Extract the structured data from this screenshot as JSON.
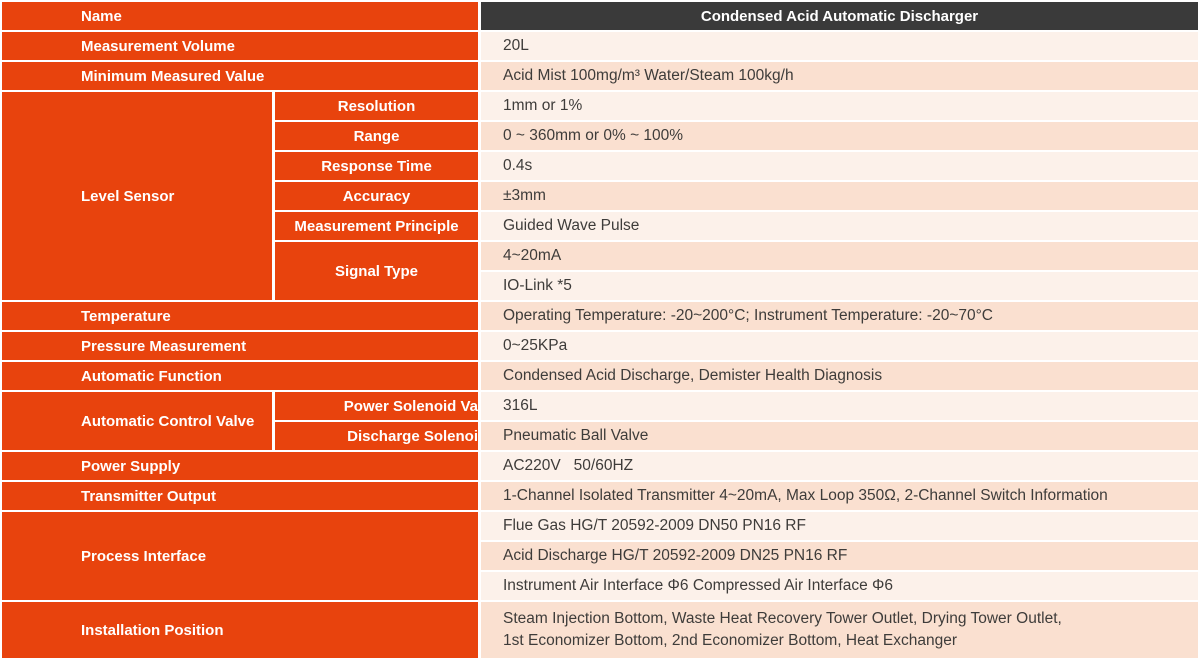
{
  "table": {
    "header": {
      "name_label": "Name",
      "product_title": "Condensed Acid Automatic Discharger"
    },
    "rows": {
      "measurement_volume": {
        "label": "Measurement Volume",
        "value": "20L"
      },
      "minimum_measured_value": {
        "label": "Minimum Measured Value",
        "value": "Acid Mist 100mg/m³ Water/Steam 100kg/h"
      },
      "level_sensor": {
        "label": "Level Sensor",
        "resolution": {
          "label": "Resolution",
          "value": "1mm or 1%"
        },
        "range": {
          "label": "Range",
          "value": "0 ~ 360mm or 0% ~ 100%"
        },
        "response_time": {
          "label": "Response Time",
          "value": "0.4s"
        },
        "accuracy": {
          "label": "Accuracy",
          "value": "±3mm"
        },
        "measurement_principle": {
          "label": "Measurement Principle",
          "value": "Guided Wave Pulse"
        },
        "signal_type": {
          "label": "Signal Type",
          "value_1": "4~20mA",
          "value_2": "IO-Link *5"
        }
      },
      "temperature": {
        "label": "Temperature",
        "value": "Operating Temperature: -20~200°C; Instrument Temperature: -20~70°C"
      },
      "pressure_measurement": {
        "label": "Pressure Measurement",
        "value": "0~25KPa"
      },
      "automatic_function": {
        "label": "Automatic Function",
        "value": "Condensed Acid Discharge, Demister Health Diagnosis"
      },
      "automatic_control_valve": {
        "label": "Automatic Control Valve",
        "power_solenoid": {
          "label": "Power Solenoid Va",
          "value": "316L"
        },
        "discharge_solenoid": {
          "label": "Discharge Solenoi",
          "value": "Pneumatic Ball Valve"
        }
      },
      "power_supply": {
        "label": "Power Supply",
        "value": "AC220V   50/60HZ"
      },
      "transmitter_output": {
        "label": "Transmitter Output",
        "value": "1-Channel Isolated Transmitter 4~20mA, Max Loop 350Ω, 2-Channel Switch Information"
      },
      "process_interface": {
        "label": "Process Interface",
        "value_1": "Flue Gas HG/T 20592-2009 DN50 PN16 RF",
        "value_2": "Acid Discharge HG/T 20592-2009 DN25 PN16 RF",
        "value_3": "Instrument Air Interface Φ6 Compressed Air Interface Φ6"
      },
      "installation_position": {
        "label": "Installation Position",
        "value_line_1": "Steam Injection Bottom, Waste Heat Recovery Tower Outlet, Drying Tower Outlet,",
        "value_line_2": "1st Economizer Bottom, 2nd Economizer Bottom, Heat Exchanger"
      }
    },
    "colors": {
      "accent_orange": "#E8430D",
      "header_dark": "#3A3A3A",
      "row_light": "#FCF1EA",
      "row_peach": "#FAE0D0",
      "label_text": "#FFFFFF",
      "value_text": "#3E3C3A"
    }
  }
}
